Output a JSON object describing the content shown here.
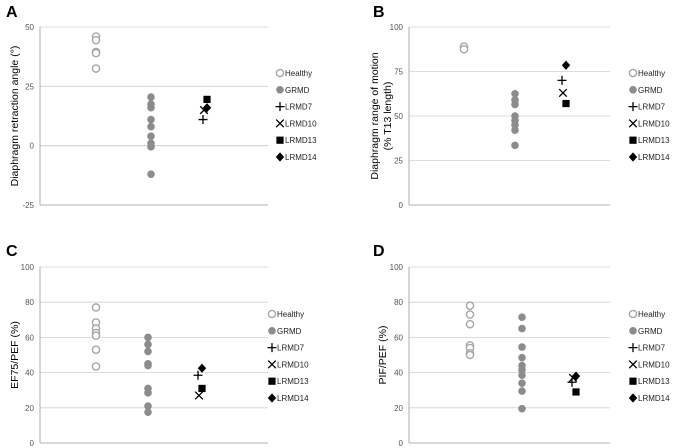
{
  "figure": {
    "legend_labels": [
      "Healthy",
      "GRMD",
      "LRMD7",
      "LRMD10",
      "LRMD13",
      "LRMD14"
    ],
    "colors": {
      "healthy": "#a6a6a6",
      "grmd": "#8c8c8c",
      "lrmd": "#000000",
      "grid": "#d0d0d0"
    }
  },
  "chart_data": [
    {
      "panel": "A",
      "type": "scatter",
      "ylabel": "Diaphragm retraction angle (°)",
      "ylim": [
        -25,
        50
      ],
      "yticks": [
        -25,
        0,
        25,
        50
      ],
      "series": [
        {
          "name": "Healthy",
          "values": [
            46,
            44.5,
            39.5,
            39,
            32.5
          ]
        },
        {
          "name": "GRMD",
          "values": [
            20.5,
            17.5,
            16,
            11,
            8,
            4,
            1,
            -0.5,
            -12
          ]
        },
        {
          "name": "LRMD7",
          "values": [
            11
          ]
        },
        {
          "name": "LRMD10",
          "values": [
            15
          ]
        },
        {
          "name": "LRMD13",
          "values": [
            19.5
          ]
        },
        {
          "name": "LRMD14",
          "values": [
            16
          ]
        }
      ]
    },
    {
      "panel": "B",
      "type": "scatter",
      "ylabel": "Diaphragm range of motion (% T13 length)",
      "ylabel_lines": [
        "Diaphragm range of motion",
        "(% T13 length)"
      ],
      "ylim": [
        0,
        100
      ],
      "yticks": [
        0,
        25,
        50,
        75,
        100
      ],
      "series": [
        {
          "name": "Healthy",
          "values": [
            89,
            87.5
          ]
        },
        {
          "name": "GRMD",
          "values": [
            62.5,
            59,
            56.5,
            50,
            47.5,
            45,
            42,
            33.5
          ]
        },
        {
          "name": "LRMD7",
          "values": [
            70
          ]
        },
        {
          "name": "LRMD10",
          "values": [
            63
          ]
        },
        {
          "name": "LRMD13",
          "values": [
            57
          ]
        },
        {
          "name": "LRMD14",
          "values": [
            78.5
          ]
        }
      ]
    },
    {
      "panel": "C",
      "type": "scatter",
      "ylabel": "EF75/PEF (%)",
      "ylim": [
        0,
        100
      ],
      "yticks": [
        0,
        20,
        40,
        60,
        80,
        100
      ],
      "series": [
        {
          "name": "Healthy",
          "values": [
            77,
            68.5,
            65,
            62.5,
            61,
            53,
            43.5
          ]
        },
        {
          "name": "GRMD",
          "values": [
            60,
            56,
            52,
            45,
            44,
            31,
            28.5,
            21,
            17.5
          ]
        },
        {
          "name": "LRMD7",
          "values": [
            38.5
          ]
        },
        {
          "name": "LRMD10",
          "values": [
            27
          ]
        },
        {
          "name": "LRMD13",
          "values": [
            31
          ]
        },
        {
          "name": "LRMD14",
          "values": [
            42.5
          ]
        }
      ]
    },
    {
      "panel": "D",
      "type": "scatter",
      "ylabel": "PIF/PEF (%)",
      "ylim": [
        0,
        100
      ],
      "yticks": [
        0,
        20,
        40,
        60,
        80,
        100
      ],
      "series": [
        {
          "name": "Healthy",
          "values": [
            78,
            73,
            67.5,
            55.5,
            54,
            51,
            50
          ]
        },
        {
          "name": "GRMD",
          "values": [
            71.5,
            65,
            54.5,
            48.5,
            44,
            41.5,
            38.5,
            34,
            29.5,
            19.5
          ]
        },
        {
          "name": "LRMD7",
          "values": [
            34.5
          ]
        },
        {
          "name": "LRMD10",
          "values": [
            37
          ]
        },
        {
          "name": "LRMD13",
          "values": [
            29
          ]
        },
        {
          "name": "LRMD14",
          "values": [
            38
          ]
        }
      ]
    }
  ]
}
